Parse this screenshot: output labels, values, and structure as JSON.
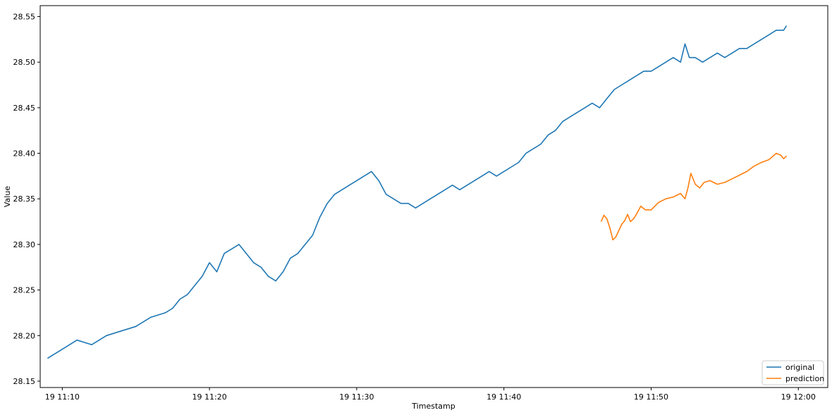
{
  "chart_data": {
    "type": "line",
    "title": "",
    "xlabel": "Timestamp",
    "ylabel": "Value",
    "x_unit": "minutes",
    "xlim": [
      188.5,
      242.0
    ],
    "ylim": [
      28.143,
      28.562
    ],
    "x_ticks": [
      {
        "value": 190,
        "label": "19 11:10"
      },
      {
        "value": 200,
        "label": "19 11:20"
      },
      {
        "value": 210,
        "label": "19 11:30"
      },
      {
        "value": 220,
        "label": "19 11:40"
      },
      {
        "value": 230,
        "label": "19 11:50"
      },
      {
        "value": 240,
        "label": "19 12:00"
      }
    ],
    "y_ticks": [
      {
        "value": 28.15,
        "label": "28.15"
      },
      {
        "value": 28.2,
        "label": "28.20"
      },
      {
        "value": 28.25,
        "label": "28.25"
      },
      {
        "value": 28.3,
        "label": "28.30"
      },
      {
        "value": 28.35,
        "label": "28.35"
      },
      {
        "value": 28.4,
        "label": "28.40"
      },
      {
        "value": 28.45,
        "label": "28.45"
      },
      {
        "value": 28.5,
        "label": "28.50"
      },
      {
        "value": 28.55,
        "label": "28.55"
      }
    ],
    "grid": false,
    "legend_position": "bottom-right",
    "series": [
      {
        "name": "original",
        "color": "#1f77b4",
        "x": [
          189.0,
          190.0,
          191.0,
          192.0,
          193.0,
          194.0,
          195.0,
          196.0,
          197.0,
          197.5,
          198.0,
          198.5,
          199.0,
          199.5,
          200.0,
          200.5,
          201.0,
          201.5,
          202.0,
          202.5,
          203.0,
          203.5,
          204.0,
          204.5,
          205.0,
          205.5,
          206.0,
          206.5,
          207.0,
          207.5,
          208.0,
          208.5,
          209.0,
          209.5,
          210.0,
          210.5,
          211.0,
          211.5,
          212.0,
          212.5,
          213.0,
          213.5,
          214.0,
          214.5,
          215.0,
          215.5,
          216.0,
          216.5,
          217.0,
          217.5,
          218.0,
          218.5,
          219.0,
          219.5,
          220.0,
          220.5,
          221.0,
          221.5,
          222.0,
          222.5,
          223.0,
          223.5,
          224.0,
          224.5,
          225.0,
          225.5,
          226.0,
          226.5,
          227.0,
          227.5,
          228.0,
          228.5,
          229.0,
          229.5,
          230.0,
          230.5,
          231.0,
          231.5,
          232.0,
          232.3,
          232.6,
          233.0,
          233.5,
          234.0,
          234.5,
          235.0,
          235.5,
          236.0,
          236.5,
          237.0,
          237.5,
          238.0,
          238.5,
          239.0,
          239.2
        ],
        "y": [
          28.175,
          28.185,
          28.195,
          28.19,
          28.2,
          28.205,
          28.21,
          28.22,
          28.225,
          28.23,
          28.24,
          28.245,
          28.255,
          28.265,
          28.28,
          28.27,
          28.29,
          28.295,
          28.3,
          28.29,
          28.28,
          28.275,
          28.265,
          28.26,
          28.27,
          28.285,
          28.29,
          28.3,
          28.31,
          28.33,
          28.345,
          28.355,
          28.36,
          28.365,
          28.37,
          28.375,
          28.38,
          28.37,
          28.355,
          28.35,
          28.345,
          28.345,
          28.34,
          28.345,
          28.35,
          28.355,
          28.36,
          28.365,
          28.36,
          28.365,
          28.37,
          28.375,
          28.38,
          28.375,
          28.38,
          28.385,
          28.39,
          28.4,
          28.405,
          28.41,
          28.42,
          28.425,
          28.435,
          28.44,
          28.445,
          28.45,
          28.455,
          28.45,
          28.46,
          28.47,
          28.475,
          28.48,
          28.485,
          28.49,
          28.49,
          28.495,
          28.5,
          28.505,
          28.5,
          28.52,
          28.505,
          28.505,
          28.5,
          28.505,
          28.51,
          28.505,
          28.51,
          28.515,
          28.515,
          28.52,
          28.525,
          28.53,
          28.535,
          28.535,
          28.54
        ]
      },
      {
        "name": "prediction",
        "color": "#ff7f0e",
        "x": [
          226.6,
          226.8,
          227.0,
          227.2,
          227.4,
          227.6,
          227.8,
          228.0,
          228.2,
          228.4,
          228.6,
          228.8,
          229.0,
          229.3,
          229.6,
          230.0,
          230.5,
          231.0,
          231.5,
          232.0,
          232.3,
          232.5,
          232.7,
          233.0,
          233.3,
          233.6,
          234.0,
          234.5,
          235.0,
          235.5,
          236.0,
          236.5,
          237.0,
          237.5,
          238.0,
          238.5,
          238.8,
          239.0,
          239.2
        ],
        "y": [
          28.325,
          28.332,
          28.328,
          28.318,
          28.305,
          28.308,
          28.315,
          28.322,
          28.326,
          28.333,
          28.325,
          28.328,
          28.333,
          28.342,
          28.338,
          28.338,
          28.346,
          28.35,
          28.352,
          28.356,
          28.35,
          28.362,
          28.378,
          28.366,
          28.362,
          28.368,
          28.37,
          28.366,
          28.368,
          28.372,
          28.376,
          28.38,
          28.386,
          28.39,
          28.393,
          28.4,
          28.398,
          28.394,
          28.397
        ]
      }
    ]
  }
}
